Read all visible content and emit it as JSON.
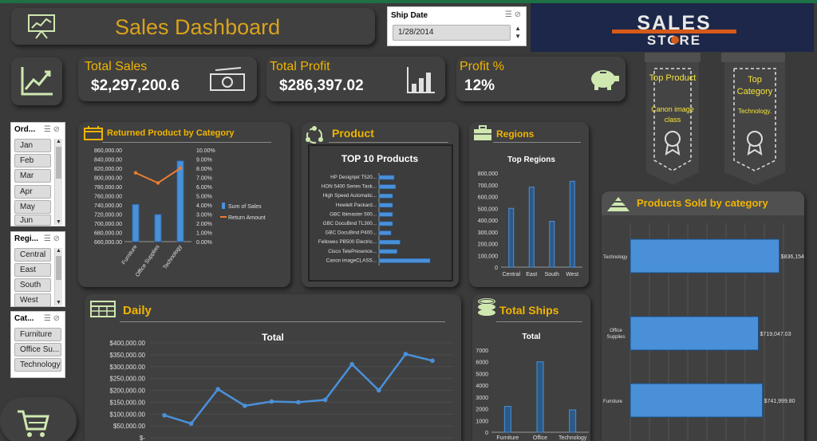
{
  "title": "Sales Dashboard",
  "ship_date": {
    "label": "Ship Date",
    "value": "1/28/2014"
  },
  "kpis": {
    "total_sales": {
      "label": "Total Sales",
      "value": "$2,297,200.6"
    },
    "total_profit": {
      "label": "Total Profit",
      "value": "$286,397.02"
    },
    "profit_pct": {
      "label": "Profit %",
      "value": "12%"
    }
  },
  "top_product": {
    "label": "Top Product",
    "value": "Canon image class"
  },
  "top_category": {
    "label": "Top Category",
    "value": "Technology."
  },
  "slicers": {
    "order": {
      "header": "Ord...",
      "items": [
        "Jan",
        "Feb",
        "Mar",
        "Apr",
        "May",
        "Jun"
      ]
    },
    "region": {
      "header": "Regi...",
      "items": [
        "Central",
        "East",
        "South",
        "West"
      ]
    },
    "category": {
      "header": "Cat...",
      "items": [
        "Furniture",
        "Office Su...",
        "Technology"
      ]
    }
  },
  "sections": {
    "returned": "Returned Product by Category",
    "product": "Product",
    "regions": "Regions",
    "products_sold": "Products Sold by category",
    "daily": "Daily",
    "total_ships": "Total Ships"
  },
  "chart_data": [
    {
      "type": "bar",
      "id": "returned",
      "categories": [
        "Furniture",
        "Office Supplies",
        "Technology"
      ],
      "series": [
        {
          "name": "Sum of Sales",
          "values": [
            741000,
            719000,
            836000
          ]
        },
        {
          "name": "Return Amount",
          "values": [
            0.075,
            0.064,
            0.08
          ]
        }
      ],
      "y_ticks": [
        "860,000.00",
        "840,000.00",
        "820,000.00",
        "800,000.00",
        "780,000.00",
        "760,000.00",
        "740,000.00",
        "720,000.00",
        "700,000.00",
        "680,000.00",
        "660,000.00"
      ],
      "y2_ticks": [
        "10.00%",
        "9.00%",
        "8.00%",
        "7.00%",
        "6.00%",
        "5.00%",
        "4.00%",
        "3.00%",
        "2.00%",
        "1.00%",
        "0.00%"
      ],
      "ylim": [
        660000,
        860000
      ],
      "y2lim": [
        0,
        0.1
      ]
    },
    {
      "type": "bar",
      "id": "top10",
      "title": "TOP 10 Products",
      "categories": [
        "HP Designjet T520...",
        "HON 5400 Series Task...",
        "High Speed Automatic...",
        "Hewlett Packard...",
        "GBC Ibimaster 500...",
        "GBC DocuBind TL300...",
        "GBC DocuBind P400...",
        "Fellowes PB500 Electric...",
        "Cisco TelePresence...",
        "Canon imageCLASS..."
      ],
      "values": [
        10,
        11,
        9,
        9,
        9,
        9,
        8,
        14,
        12,
        34
      ]
    },
    {
      "type": "bar",
      "id": "regions",
      "title": "Top Regions",
      "categories": [
        "Central",
        "East",
        "South",
        "West"
      ],
      "values": [
        500000,
        680000,
        390000,
        730000
      ],
      "y_ticks": [
        "800,000",
        "700,000",
        "600,000",
        "500,000",
        "400,000",
        "300,000",
        "200,000",
        "100,000",
        "0"
      ],
      "ylim": [
        0,
        800000
      ]
    },
    {
      "type": "bar",
      "id": "products_sold",
      "categories": [
        "Technology",
        "Office Supplies",
        "Furniture"
      ],
      "values": [
        836154.03,
        719047.03,
        741999.8
      ],
      "labels": [
        "$836,154.03",
        "$719,047.03",
        "$741,999.80"
      ]
    },
    {
      "type": "line",
      "id": "daily",
      "title": "Total",
      "values": [
        95000,
        60000,
        205000,
        135000,
        153000,
        150000,
        160000,
        310000,
        200000,
        353000,
        325000
      ],
      "y_ticks": [
        "$400,000.00",
        "$350,000.00",
        "$300,000.00",
        "$250,000.00",
        "$200,000.00",
        "$150,000.00",
        "$100,000.00",
        "$50,000.00",
        "$-"
      ],
      "ylim": [
        0,
        400000
      ]
    },
    {
      "type": "bar",
      "id": "ships",
      "title": "Total",
      "categories": [
        "Furniture",
        "Office",
        "Technology"
      ],
      "values": [
        2200,
        6000,
        1900
      ],
      "y_ticks": [
        "7000",
        "6000",
        "5000",
        "4000",
        "3000",
        "2000",
        "1000",
        "0"
      ],
      "ylim": [
        0,
        7000
      ]
    }
  ],
  "colors": {
    "accent": "#f0b400",
    "bar": "#4a90d9",
    "line": "#ed7d31",
    "panel": "#404040",
    "background": "#3a3a3a"
  }
}
